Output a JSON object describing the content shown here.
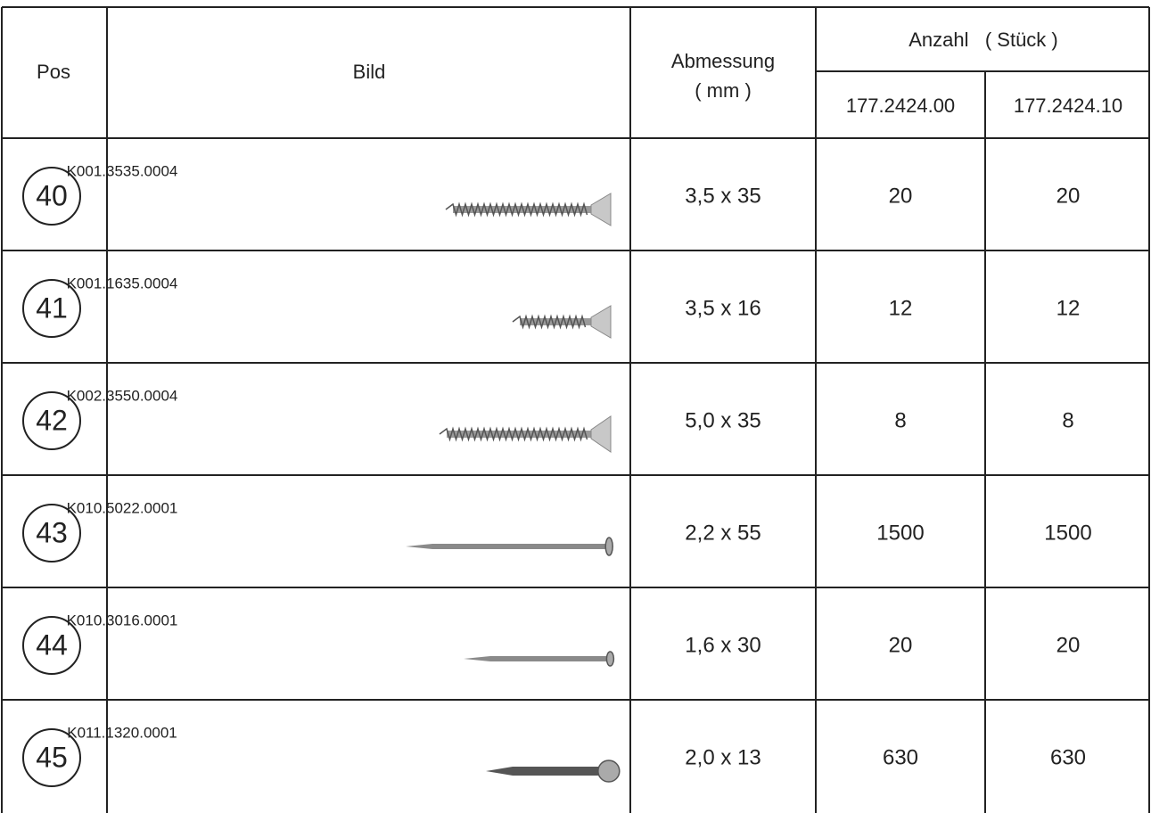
{
  "header": {
    "pos": "Pos",
    "bild": "Bild",
    "abmessung": [
      "Abmessung",
      "( mm )"
    ],
    "anzahl": "Anzahl   ( Stück )",
    "variants": [
      "177.2424.00",
      "177.2424.10"
    ]
  },
  "rows": [
    {
      "pos": "40",
      "code": "K001.3535.0004",
      "dimension": "3,5 x 35",
      "quantities": [
        20,
        20
      ]
    },
    {
      "pos": "41",
      "code": "K001.1635.0004",
      "dimension": "3,5 x 16",
      "quantities": [
        12,
        12
      ]
    },
    {
      "pos": "42",
      "code": "K002.3550.0004",
      "dimension": "5,0 x 35",
      "quantities": [
        8,
        8
      ]
    },
    {
      "pos": "43",
      "code": "K010.5022.0001",
      "dimension": "2,2 x 55",
      "quantities": [
        1500,
        1500
      ]
    },
    {
      "pos": "44",
      "code": "K010.3016.0001",
      "dimension": "1,6 x 30",
      "quantities": [
        20,
        20
      ]
    },
    {
      "pos": "45",
      "code": "K011.1320.0001",
      "dimension": "2,0 x 13",
      "quantities": [
        630,
        630
      ]
    }
  ]
}
